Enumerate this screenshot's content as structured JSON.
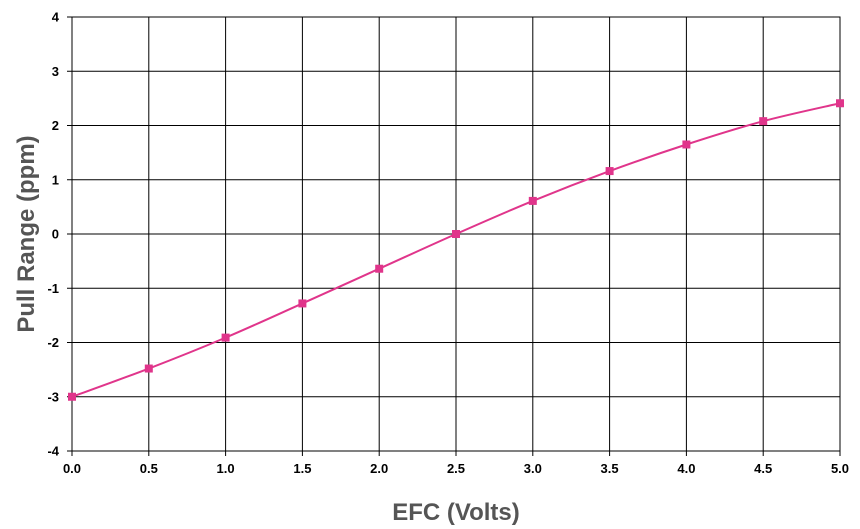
{
  "chart_data": {
    "type": "line",
    "title": "",
    "xlabel": "EFC (Volts)",
    "ylabel": "Pull Range (ppm)",
    "xlim": [
      0.0,
      5.0
    ],
    "ylim": [
      -4,
      4
    ],
    "x_ticks": [
      "0.0",
      "0.5",
      "1.0",
      "1.5",
      "2.0",
      "2.5",
      "3.0",
      "3.5",
      "4.0",
      "4.5",
      "5.0"
    ],
    "y_ticks": [
      "4",
      "3",
      "2",
      "1",
      "0",
      "-1",
      "-2",
      "-3",
      "-4"
    ],
    "grid": true,
    "legend": "none",
    "series": [
      {
        "color": "#e0358b",
        "marker": "square",
        "x": [
          0.0,
          0.5,
          1.0,
          1.5,
          2.0,
          2.5,
          3.0,
          3.5,
          4.0,
          4.5,
          5.0
        ],
        "y": [
          -3.0,
          -2.48,
          -1.91,
          -1.28,
          -0.64,
          0.0,
          0.61,
          1.16,
          1.65,
          2.08,
          2.41
        ]
      }
    ]
  }
}
